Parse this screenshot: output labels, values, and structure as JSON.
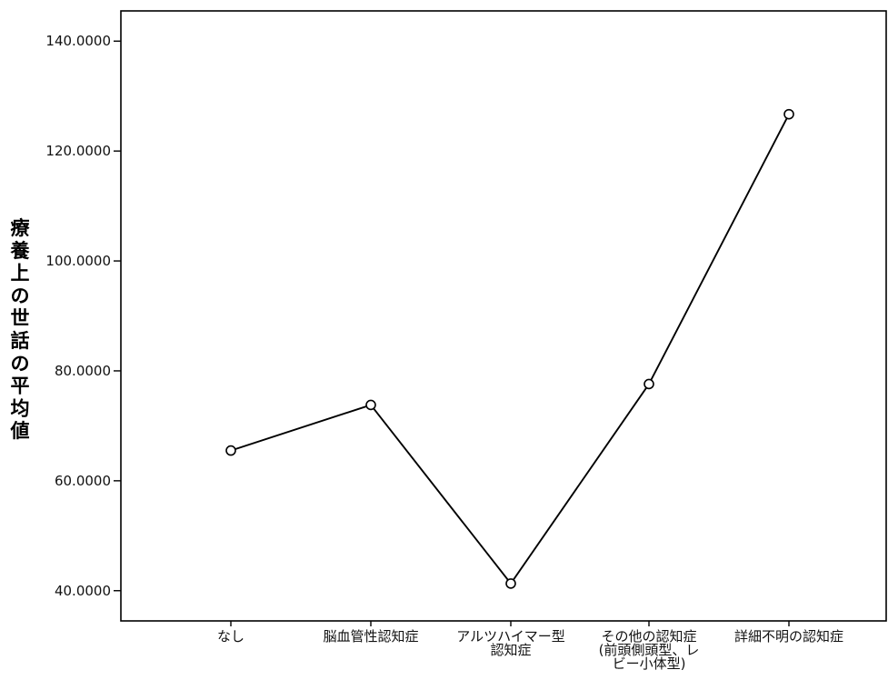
{
  "chart_data": {
    "type": "line",
    "title": "",
    "xlabel": "",
    "ylabel": "療養上の世話の平均値",
    "categories": [
      "なし",
      "脳血管性認知症",
      "アルツハイマー型\n認知症",
      "その他の認知症\n(前頭側頭型、レ\nビー小体型)",
      "詳細不明の認知症"
    ],
    "series": [
      {
        "values": [
          65.5,
          73.8,
          41.3,
          77.6,
          126.7
        ]
      }
    ],
    "ylim": [
      34.5,
      145.5
    ],
    "yticks": [
      40,
      60,
      80,
      100,
      120,
      140
    ],
    "ytick_labels": [
      "40.0000",
      "60.0000",
      "80.0000",
      "100.0000",
      "120.0000",
      "140.0000"
    ],
    "marker": "open-circle",
    "grid": false,
    "legend": "none",
    "colors": {
      "line": "#000000",
      "frame": "#000000"
    }
  }
}
